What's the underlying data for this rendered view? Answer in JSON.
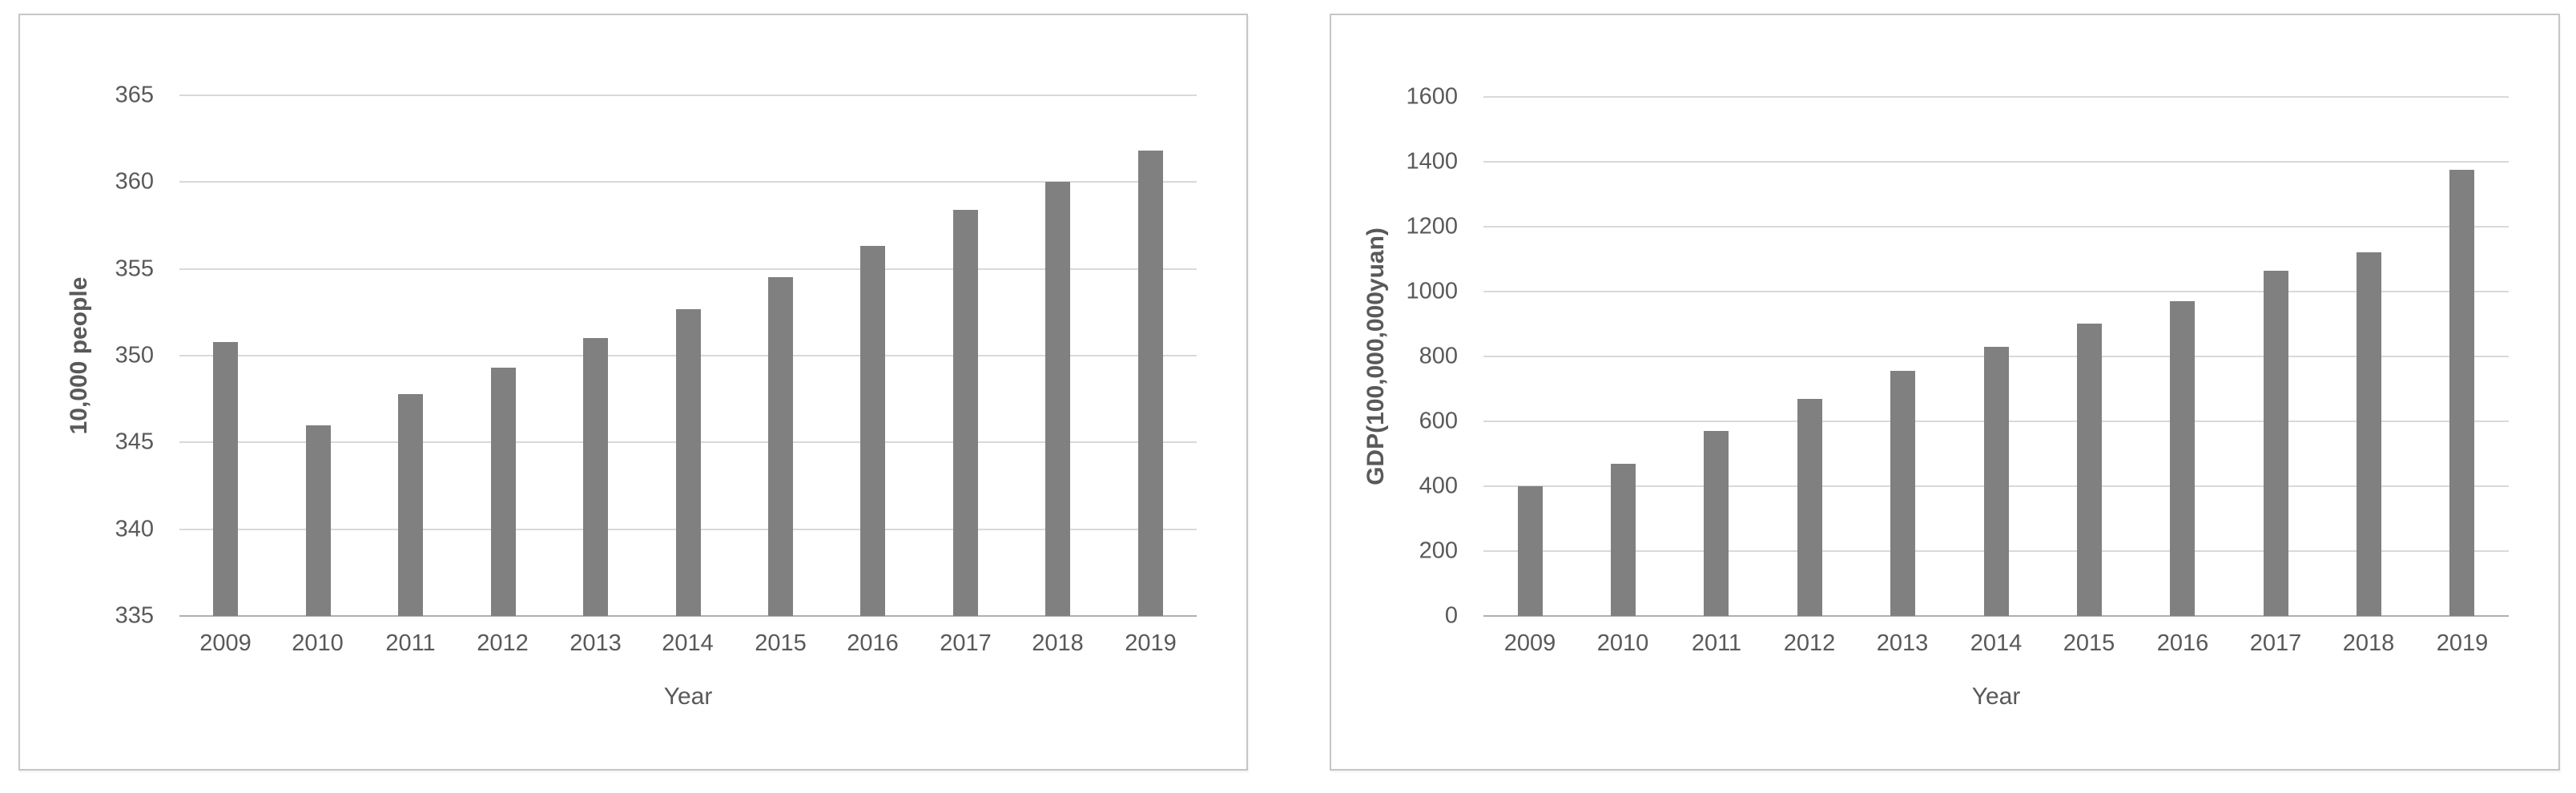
{
  "page": {
    "background": "#ffffff",
    "panel_border_color": "#c6c6c6"
  },
  "chart_data": [
    {
      "type": "bar",
      "title": "",
      "categories": [
        "2009",
        "2010",
        "2011",
        "2012",
        "2013",
        "2014",
        "2015",
        "2016",
        "2017",
        "2018",
        "2019"
      ],
      "values": [
        350.8,
        346.0,
        347.8,
        349.3,
        351.0,
        352.7,
        354.5,
        356.3,
        358.4,
        360.0,
        361.8
      ],
      "xlabel": "Year",
      "ylabel": "10,000 people",
      "ylim": [
        335,
        365
      ],
      "yticks": [
        365,
        360,
        355,
        350,
        345,
        340,
        335
      ],
      "grid": true,
      "legend": "none",
      "bar_color": "#808080",
      "gridline_color": "#d9d9d9",
      "axis_line_color": "#b0b0b0",
      "text_color": "#595959"
    },
    {
      "type": "bar",
      "title": "",
      "categories": [
        "2009",
        "2010",
        "2011",
        "2012",
        "2013",
        "2014",
        "2015",
        "2016",
        "2017",
        "2018",
        "2019"
      ],
      "values": [
        400,
        470,
        570,
        670,
        755,
        830,
        900,
        970,
        1065,
        1120,
        1375
      ],
      "xlabel": "Year",
      "ylabel": "GDP(100,000,000yuan)",
      "ylim": [
        0,
        1600
      ],
      "yticks": [
        1600,
        1400,
        1200,
        1000,
        800,
        600,
        400,
        200,
        0
      ],
      "grid": true,
      "legend": "none",
      "bar_color": "#808080",
      "gridline_color": "#d9d9d9",
      "axis_line_color": "#b0b0b0",
      "text_color": "#595959"
    }
  ]
}
